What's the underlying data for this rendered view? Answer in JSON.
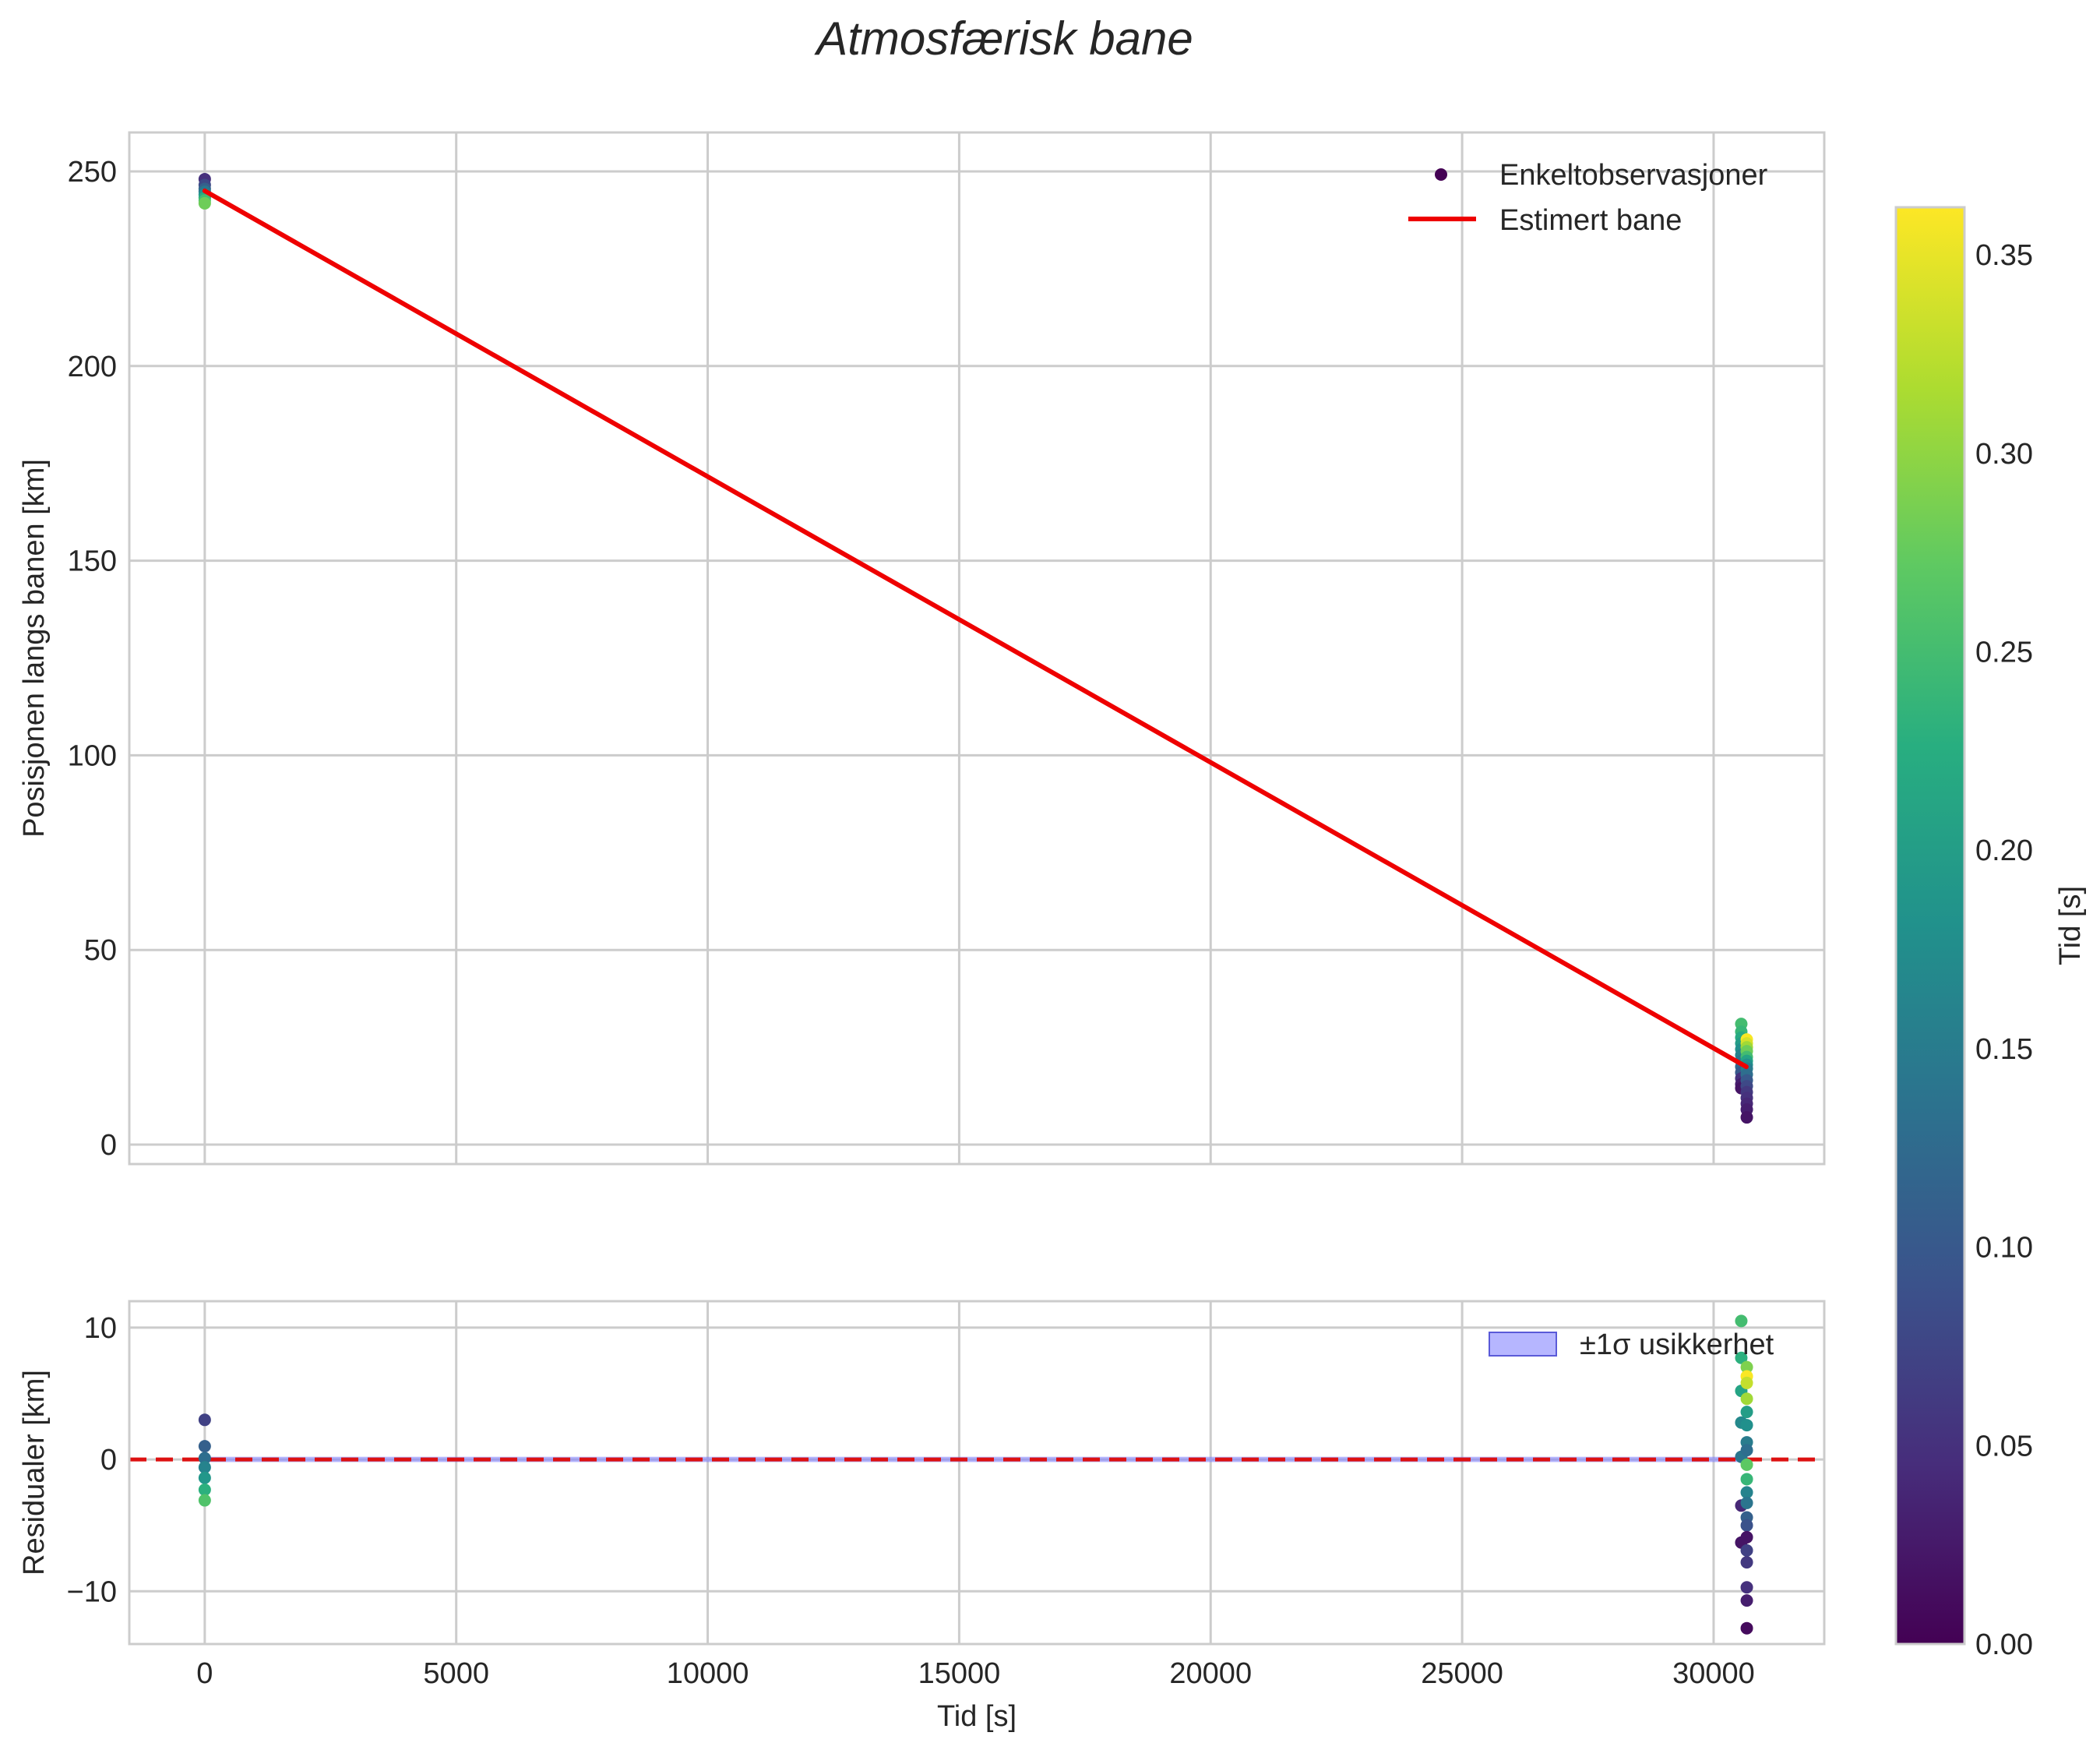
{
  "chart_data": {
    "title": "Atmosfærisk bane",
    "colormap": "viridis",
    "colorbar": {
      "label": "Tid [s]",
      "range": [
        0,
        0.362
      ],
      "ticks": [
        0.0,
        0.05,
        0.1,
        0.15,
        0.2,
        0.25,
        0.3,
        0.35
      ],
      "tick_labels": [
        "0.00",
        "0.05",
        "0.10",
        "0.15",
        "0.20",
        "0.25",
        "0.30",
        "0.35"
      ]
    },
    "top": {
      "type": "scatter+line",
      "xlabel": "",
      "ylabel": "Posisjonen langs banen [km]",
      "xlim": [
        -1500,
        32200
      ],
      "ylim": [
        -5,
        260
      ],
      "xticks": [
        0,
        5000,
        10000,
        15000,
        20000,
        25000,
        30000
      ],
      "yticks": [
        0,
        50,
        100,
        150,
        200,
        250
      ],
      "ytick_labels": [
        "0",
        "50",
        "100",
        "150",
        "200",
        "250"
      ],
      "legend": {
        "position": "top-right",
        "scatter_label": "Enkeltobservasjoner",
        "line_label": "Estimert bane"
      },
      "fit_line": {
        "name": "Estimert bane",
        "color": "#ee0000",
        "x": [
          0,
          30650
        ],
        "y": [
          245,
          20
        ]
      },
      "observations": [
        {
          "x": 0,
          "y": 248,
          "c": 0.05
        },
        {
          "x": 0,
          "y": 246.5,
          "c": 0.08
        },
        {
          "x": 0,
          "y": 245.5,
          "c": 0.11
        },
        {
          "x": 0,
          "y": 244.8,
          "c": 0.14
        },
        {
          "x": 0,
          "y": 244,
          "c": 0.18
        },
        {
          "x": 0,
          "y": 243.2,
          "c": 0.22
        },
        {
          "x": 0,
          "y": 242.5,
          "c": 0.25
        },
        {
          "x": 0,
          "y": 241.8,
          "c": 0.28
        },
        {
          "x": 30550,
          "y": 31,
          "c": 0.25
        },
        {
          "x": 30550,
          "y": 29,
          "c": 0.24
        },
        {
          "x": 30550,
          "y": 27.5,
          "c": 0.22
        },
        {
          "x": 30550,
          "y": 26,
          "c": 0.2
        },
        {
          "x": 30550,
          "y": 24.5,
          "c": 0.18
        },
        {
          "x": 30550,
          "y": 23,
          "c": 0.16
        },
        {
          "x": 30550,
          "y": 21.5,
          "c": 0.14
        },
        {
          "x": 30550,
          "y": 20,
          "c": 0.12
        },
        {
          "x": 30550,
          "y": 18.5,
          "c": 0.1
        },
        {
          "x": 30550,
          "y": 17,
          "c": 0.05
        },
        {
          "x": 30550,
          "y": 15.5,
          "c": 0.03
        },
        {
          "x": 30550,
          "y": 14.5,
          "c": 0.02
        },
        {
          "x": 30660,
          "y": 27,
          "c": 0.36
        },
        {
          "x": 30660,
          "y": 26,
          "c": 0.34
        },
        {
          "x": 30660,
          "y": 25,
          "c": 0.31
        },
        {
          "x": 30660,
          "y": 24,
          "c": 0.28
        },
        {
          "x": 30660,
          "y": 22.5,
          "c": 0.25
        },
        {
          "x": 30660,
          "y": 21.5,
          "c": 0.21
        },
        {
          "x": 30660,
          "y": 20.5,
          "c": 0.18
        },
        {
          "x": 30660,
          "y": 19.5,
          "c": 0.15
        },
        {
          "x": 30660,
          "y": 18,
          "c": 0.13
        },
        {
          "x": 30660,
          "y": 16.5,
          "c": 0.1
        },
        {
          "x": 30660,
          "y": 15,
          "c": 0.08
        },
        {
          "x": 30660,
          "y": 13.5,
          "c": 0.06
        },
        {
          "x": 30660,
          "y": 12,
          "c": 0.05
        },
        {
          "x": 30660,
          "y": 10.5,
          "c": 0.04
        },
        {
          "x": 30660,
          "y": 9,
          "c": 0.03
        },
        {
          "x": 30660,
          "y": 7,
          "c": 0.02
        }
      ]
    },
    "bottom": {
      "type": "scatter",
      "xlabel": "Tid [s]",
      "ylabel": "Residualer [km]",
      "xlim": [
        -1500,
        32200
      ],
      "ylim": [
        -14,
        12
      ],
      "xticks": [
        0,
        5000,
        10000,
        15000,
        20000,
        25000,
        30000
      ],
      "xtick_labels": [
        "0",
        "5000",
        "10000",
        "15000",
        "20000",
        "25000",
        "30000"
      ],
      "yticks": [
        -10,
        0,
        10
      ],
      "ytick_labels": [
        "−10",
        "0",
        "10"
      ],
      "zero_line": {
        "y": 0,
        "color": "#dd1111",
        "style": "dashed"
      },
      "band": {
        "label": "±1σ usikkerhet",
        "x": [
          0,
          30600
        ],
        "halfwidth_km": 0.2,
        "color": "#7a7aff"
      },
      "legend": {
        "position": "top-right",
        "band_label": "±1σ usikkerhet"
      },
      "residuals": [
        {
          "x": 0,
          "y": 3,
          "c": 0.07
        },
        {
          "x": 0,
          "y": 1,
          "c": 0.11
        },
        {
          "x": 0,
          "y": 0.1,
          "c": 0.13
        },
        {
          "x": 0,
          "y": -0.6,
          "c": 0.16
        },
        {
          "x": 0,
          "y": -1.4,
          "c": 0.19
        },
        {
          "x": 0,
          "y": -2.3,
          "c": 0.23
        },
        {
          "x": 0,
          "y": -3.1,
          "c": 0.26
        },
        {
          "x": 30550,
          "y": 10.5,
          "c": 0.25
        },
        {
          "x": 30550,
          "y": 7.7,
          "c": 0.23
        },
        {
          "x": 30550,
          "y": 5.2,
          "c": 0.21
        },
        {
          "x": 30550,
          "y": 2.8,
          "c": 0.17
        },
        {
          "x": 30550,
          "y": 0.2,
          "c": 0.14
        },
        {
          "x": 30550,
          "y": -3.5,
          "c": 0.04
        },
        {
          "x": 30550,
          "y": -6.3,
          "c": 0.02
        },
        {
          "x": 30660,
          "y": 7,
          "c": 0.29
        },
        {
          "x": 30660,
          "y": 6.3,
          "c": 0.36
        },
        {
          "x": 30660,
          "y": 5.8,
          "c": 0.33
        },
        {
          "x": 30660,
          "y": 4.6,
          "c": 0.31
        },
        {
          "x": 30660,
          "y": 3.6,
          "c": 0.2
        },
        {
          "x": 30660,
          "y": 2.6,
          "c": 0.18
        },
        {
          "x": 30660,
          "y": 1.3,
          "c": 0.15
        },
        {
          "x": 30660,
          "y": 0.7,
          "c": 0.13
        },
        {
          "x": 30660,
          "y": -0.4,
          "c": 0.27
        },
        {
          "x": 30660,
          "y": -1.5,
          "c": 0.24
        },
        {
          "x": 30660,
          "y": -2.5,
          "c": 0.16
        },
        {
          "x": 30660,
          "y": -3.3,
          "c": 0.14
        },
        {
          "x": 30660,
          "y": -4.4,
          "c": 0.11
        },
        {
          "x": 30660,
          "y": -5,
          "c": 0.09
        },
        {
          "x": 30660,
          "y": -5.9,
          "c": 0.02
        },
        {
          "x": 30660,
          "y": -6.9,
          "c": 0.07
        },
        {
          "x": 30660,
          "y": -7.8,
          "c": 0.06
        },
        {
          "x": 30660,
          "y": -9.7,
          "c": 0.05
        },
        {
          "x": 30660,
          "y": -10.7,
          "c": 0.03
        },
        {
          "x": 30660,
          "y": -12.8,
          "c": 0.01
        }
      ]
    }
  }
}
